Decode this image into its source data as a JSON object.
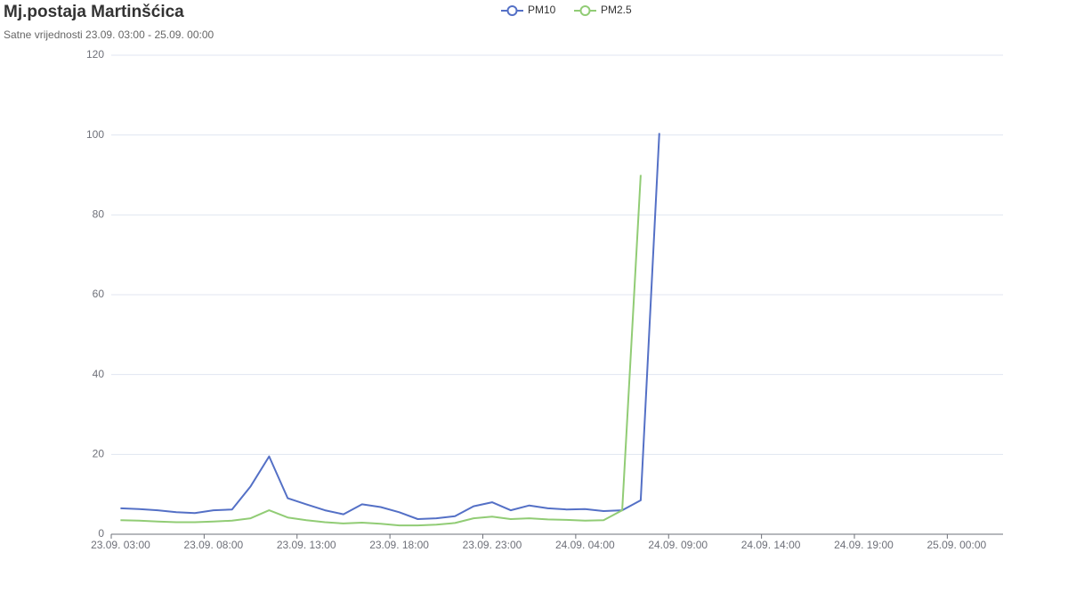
{
  "chart_data": {
    "type": "line",
    "title": "Mj.postaja Martinšćica",
    "subtitle": "Satne vrijednosti 23.09. 03:00 - 25.09. 00:00",
    "categories": [
      "23.09. 03:00",
      null,
      null,
      null,
      null,
      "23.09. 08:00",
      null,
      null,
      null,
      null,
      "23.09. 13:00",
      null,
      null,
      null,
      null,
      "23.09. 18:00",
      null,
      null,
      null,
      null,
      "23.09. 23:00",
      null,
      null,
      null,
      null,
      "24.09. 04:00",
      null,
      null,
      null,
      null,
      "24.09. 09:00",
      null,
      null,
      null,
      null,
      "24.09. 14:00",
      null,
      null,
      null,
      null,
      "24.09. 19:00",
      null,
      null,
      null,
      null,
      "25.09. 00:00",
      null,
      null
    ],
    "series": [
      {
        "name": "PM10",
        "color": "#5470c6",
        "values": [
          6.5,
          6.3,
          6,
          5.5,
          5.3,
          6,
          6.2,
          12,
          19.5,
          9,
          7.5,
          6,
          5,
          7.5,
          6.8,
          5.5,
          3.8,
          4,
          4.5,
          7,
          8,
          6,
          7.2,
          6.5,
          6.2,
          6.3,
          5.8,
          6,
          8.5,
          100.5,
          null,
          null,
          null,
          null,
          null,
          null,
          null,
          null,
          null,
          null,
          null,
          null,
          null,
          null,
          null,
          null,
          null,
          null
        ]
      },
      {
        "name": "PM2.5",
        "color": "#91cc75",
        "values": [
          3.5,
          3.4,
          3.2,
          3,
          3,
          3.2,
          3.4,
          4,
          6,
          4.2,
          3.5,
          3,
          2.7,
          2.9,
          2.6,
          2.2,
          2.2,
          2.4,
          2.8,
          4,
          4.4,
          3.8,
          4,
          3.7,
          3.6,
          3.4,
          3.5,
          6,
          90,
          null,
          null,
          null,
          null,
          null,
          null,
          null,
          null,
          null,
          null,
          null,
          null,
          null,
          null,
          null,
          null,
          null,
          null,
          null
        ]
      }
    ],
    "ylim": [
      0,
      120
    ],
    "yticks": [
      0,
      20,
      40,
      60,
      80,
      100,
      120
    ],
    "grid": true
  }
}
